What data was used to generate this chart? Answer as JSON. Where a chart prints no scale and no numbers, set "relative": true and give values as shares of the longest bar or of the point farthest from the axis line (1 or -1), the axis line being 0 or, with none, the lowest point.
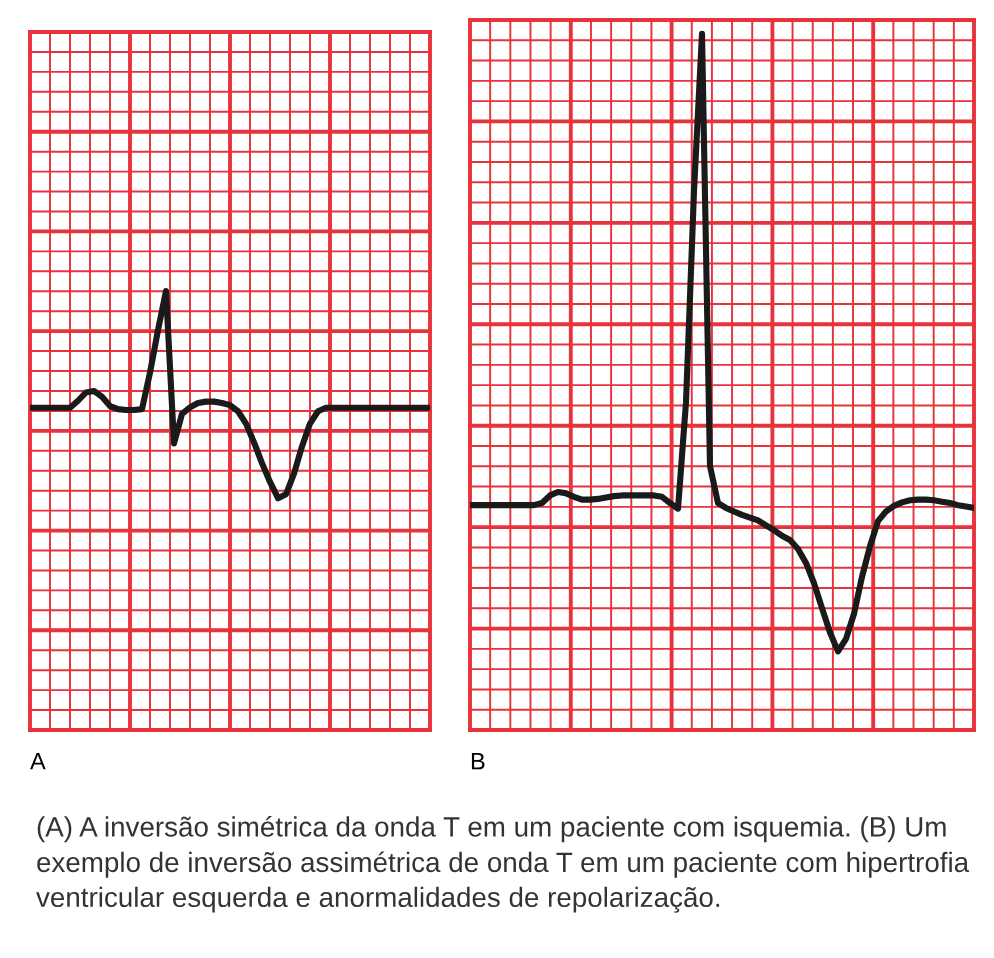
{
  "chart_data": [
    {
      "type": "line",
      "title": "A",
      "relative": true,
      "grid": true,
      "categories": [
        null,
        null,
        null,
        null,
        null,
        null,
        null,
        null,
        null,
        null,
        null,
        null,
        null,
        null,
        null,
        null,
        null,
        null,
        null,
        null,
        null,
        null,
        null,
        null,
        null,
        null,
        null,
        null,
        null,
        null,
        null,
        null,
        null,
        null,
        null,
        null,
        null,
        null,
        null,
        null,
        null,
        null,
        null,
        null,
        null,
        null,
        null,
        null,
        null,
        null,
        null
      ],
      "series": [
        {
          "color": "#1a1a1a",
          "values": [
            0.734,
            0.734,
            0.734,
            0.734,
            0.734,
            0.734,
            0.75,
            0.769,
            0.772,
            0.759,
            0.738,
            0.731,
            0.729,
            0.729,
            0.731,
            0.814,
            0.911,
            1.0,
            0.653,
            0.72,
            0.735,
            0.745,
            0.748,
            0.748,
            0.745,
            0.74,
            0.726,
            0.698,
            0.655,
            0.608,
            0.565,
            0.528,
            0.537,
            0.584,
            0.646,
            0.698,
            0.726,
            0.734,
            0.734,
            0.734,
            0.734,
            0.734,
            0.734,
            0.734,
            0.734,
            0.734,
            0.734,
            0.734,
            0.734,
            0.734,
            0.734
          ]
        }
      ]
    },
    {
      "type": "line",
      "title": "B",
      "relative": true,
      "grid": true,
      "categories": [
        null,
        null,
        null,
        null,
        null,
        null,
        null,
        null,
        null,
        null,
        null,
        null,
        null,
        null,
        null,
        null,
        null,
        null,
        null,
        null,
        null,
        null,
        null,
        null,
        null,
        null,
        null,
        null,
        null,
        null,
        null,
        null,
        null,
        null,
        null,
        null,
        null,
        null,
        null,
        null,
        null,
        null,
        null,
        null,
        null,
        null,
        null,
        null,
        null,
        null,
        null,
        null,
        null,
        null,
        null,
        null,
        null,
        null,
        null,
        null,
        null,
        null,
        null,
        null
      ],
      "series": [
        {
          "color": "#1a1a1a",
          "values": [
            0.323,
            0.323,
            0.323,
            0.323,
            0.323,
            0.323,
            0.323,
            0.323,
            0.323,
            0.326,
            0.337,
            0.342,
            0.34,
            0.335,
            0.331,
            0.331,
            0.332,
            0.334,
            0.336,
            0.337,
            0.337,
            0.337,
            0.337,
            0.337,
            0.335,
            0.326,
            0.318,
            0.471,
            0.774,
            1.0,
            0.379,
            0.326,
            0.319,
            0.314,
            0.309,
            0.305,
            0.301,
            0.294,
            0.287,
            0.279,
            0.273,
            0.26,
            0.24,
            0.211,
            0.175,
            0.14,
            0.113,
            0.131,
            0.167,
            0.22,
            0.264,
            0.3,
            0.314,
            0.322,
            0.327,
            0.33,
            0.331,
            0.331,
            0.33,
            0.328,
            0.326,
            0.323,
            0.321,
            0.319
          ]
        }
      ],
      "annotations": [
        "(A) A inversão simétrica da onda T em um paciente com isquemia. (B) Um exemplo de inversão assimétrica de onda T em um paciente com hipertrofia ventricular esquerda e anormalidades de repolarização."
      ]
    }
  ]
}
